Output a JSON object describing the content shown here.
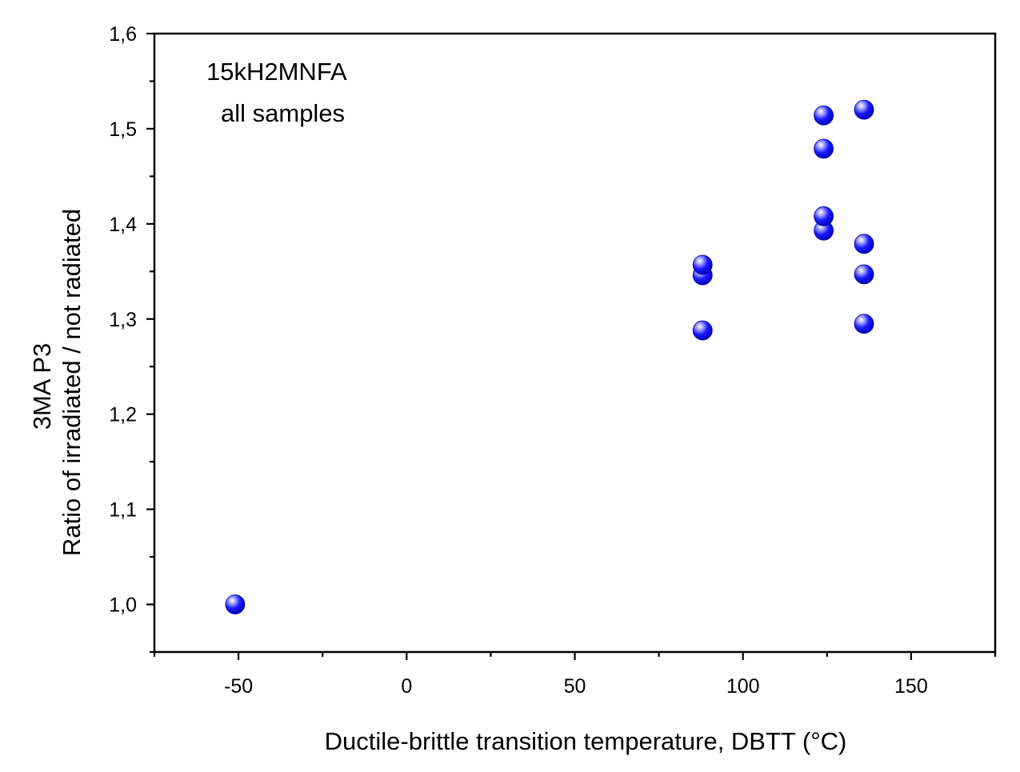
{
  "chart_data": {
    "type": "scatter",
    "title": "",
    "xlabel": "Ductile-brittle transition temperature, DBTT (°C)",
    "ylabel_line1": "3MA  P3",
    "ylabel_line2": "Ratio of irradiated / not radiated",
    "xlim": [
      -75,
      175
    ],
    "ylim": [
      0.95,
      1.6
    ],
    "x_ticks": [
      -50,
      0,
      50,
      100,
      150
    ],
    "x_tick_labels": [
      "-50",
      "0",
      "50",
      "100",
      "150"
    ],
    "y_ticks": [
      1.0,
      1.1,
      1.2,
      1.3,
      1.4,
      1.5,
      1.6
    ],
    "y_tick_labels": [
      "1,0",
      "1,1",
      "1,2",
      "1,3",
      "1,4",
      "1,5",
      "1,6"
    ],
    "grid": false,
    "legend": "none",
    "annotations": [
      {
        "text": "15kH2MNFA"
      },
      {
        "text": "all samples"
      }
    ],
    "series": [
      {
        "color": "#1a1aff",
        "points": [
          {
            "x": -51,
            "y": 1.0
          },
          {
            "x": 88,
            "y": 1.288
          },
          {
            "x": 88,
            "y": 1.346
          },
          {
            "x": 88,
            "y": 1.357
          },
          {
            "x": 124,
            "y": 1.393
          },
          {
            "x": 124,
            "y": 1.408
          },
          {
            "x": 124,
            "y": 1.479
          },
          {
            "x": 124,
            "y": 1.514
          },
          {
            "x": 136,
            "y": 1.295
          },
          {
            "x": 136,
            "y": 1.347
          },
          {
            "x": 136,
            "y": 1.379
          },
          {
            "x": 136,
            "y": 1.52
          }
        ]
      }
    ]
  }
}
